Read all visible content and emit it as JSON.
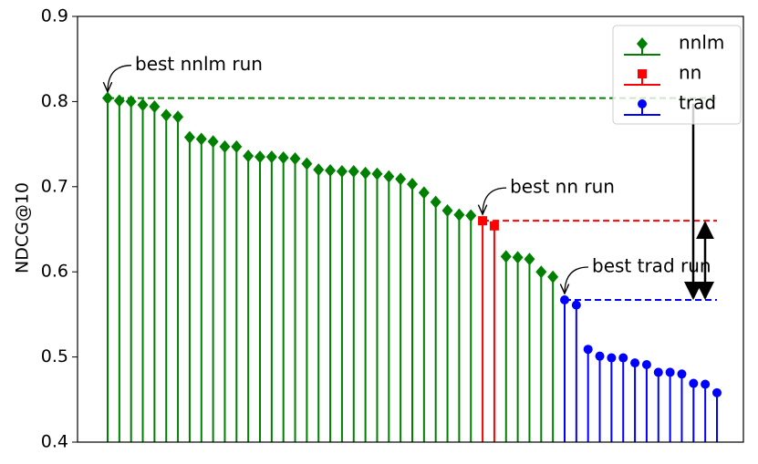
{
  "chart_data": {
    "type": "stem",
    "y_label": "NDCG@10",
    "categories": [
      null,
      null,
      null,
      null,
      null,
      null,
      null,
      null,
      null,
      null,
      null,
      null,
      null,
      null,
      null,
      null,
      null,
      null,
      null,
      null,
      null,
      null,
      null,
      null,
      null,
      null,
      null,
      null,
      null,
      null,
      null,
      null,
      null,
      null,
      null,
      null,
      null,
      null,
      null,
      null,
      null,
      null,
      null,
      null,
      null,
      null,
      null,
      null,
      null,
      null,
      null,
      null,
      null
    ],
    "series": [
      {
        "name": "nnlm",
        "color": "#008000",
        "marker": "D",
        "values": [
          0.804,
          0.801,
          0.8,
          0.796,
          0.794,
          0.784,
          0.782,
          0.758,
          0.756,
          0.753,
          0.747,
          0.747,
          0.736,
          0.735,
          0.735,
          0.734,
          0.733,
          0.727,
          0.72,
          0.719,
          0.718,
          0.718,
          0.716,
          0.715,
          0.712,
          0.709,
          0.703,
          0.693,
          0.682,
          0.672,
          0.667,
          0.666,
          null,
          null,
          0.618,
          0.617,
          0.615,
          0.6,
          0.594,
          null,
          null,
          null,
          null,
          null,
          null,
          null,
          null,
          null,
          null,
          null,
          null,
          null,
          null
        ]
      },
      {
        "name": "nn",
        "color": "#ff0000",
        "marker": "s",
        "values": [
          null,
          null,
          null,
          null,
          null,
          null,
          null,
          null,
          null,
          null,
          null,
          null,
          null,
          null,
          null,
          null,
          null,
          null,
          null,
          null,
          null,
          null,
          null,
          null,
          null,
          null,
          null,
          null,
          null,
          null,
          null,
          null,
          0.66,
          0.654,
          null,
          null,
          null,
          null,
          null,
          null,
          null,
          null,
          null,
          null,
          null,
          null,
          null,
          null,
          null,
          null,
          null,
          null,
          null
        ]
      },
      {
        "name": "trad",
        "color": "#0000ff",
        "marker": "o",
        "values": [
          null,
          null,
          null,
          null,
          null,
          null,
          null,
          null,
          null,
          null,
          null,
          null,
          null,
          null,
          null,
          null,
          null,
          null,
          null,
          null,
          null,
          null,
          null,
          null,
          null,
          null,
          null,
          null,
          null,
          null,
          null,
          null,
          null,
          null,
          null,
          null,
          null,
          null,
          null,
          0.567,
          0.561,
          0.509,
          0.501,
          0.499,
          0.499,
          0.493,
          0.491,
          0.482,
          0.482,
          0.48,
          0.469,
          0.468,
          0.458
        ]
      }
    ],
    "annotations": [
      "best nnlm run",
      "best nn run",
      "best trad run"
    ],
    "ylim": [
      0.4,
      0.9
    ],
    "yticks": [
      0.4,
      0.5,
      0.6,
      0.7,
      0.8,
      0.9
    ],
    "legend": "upper right"
  }
}
